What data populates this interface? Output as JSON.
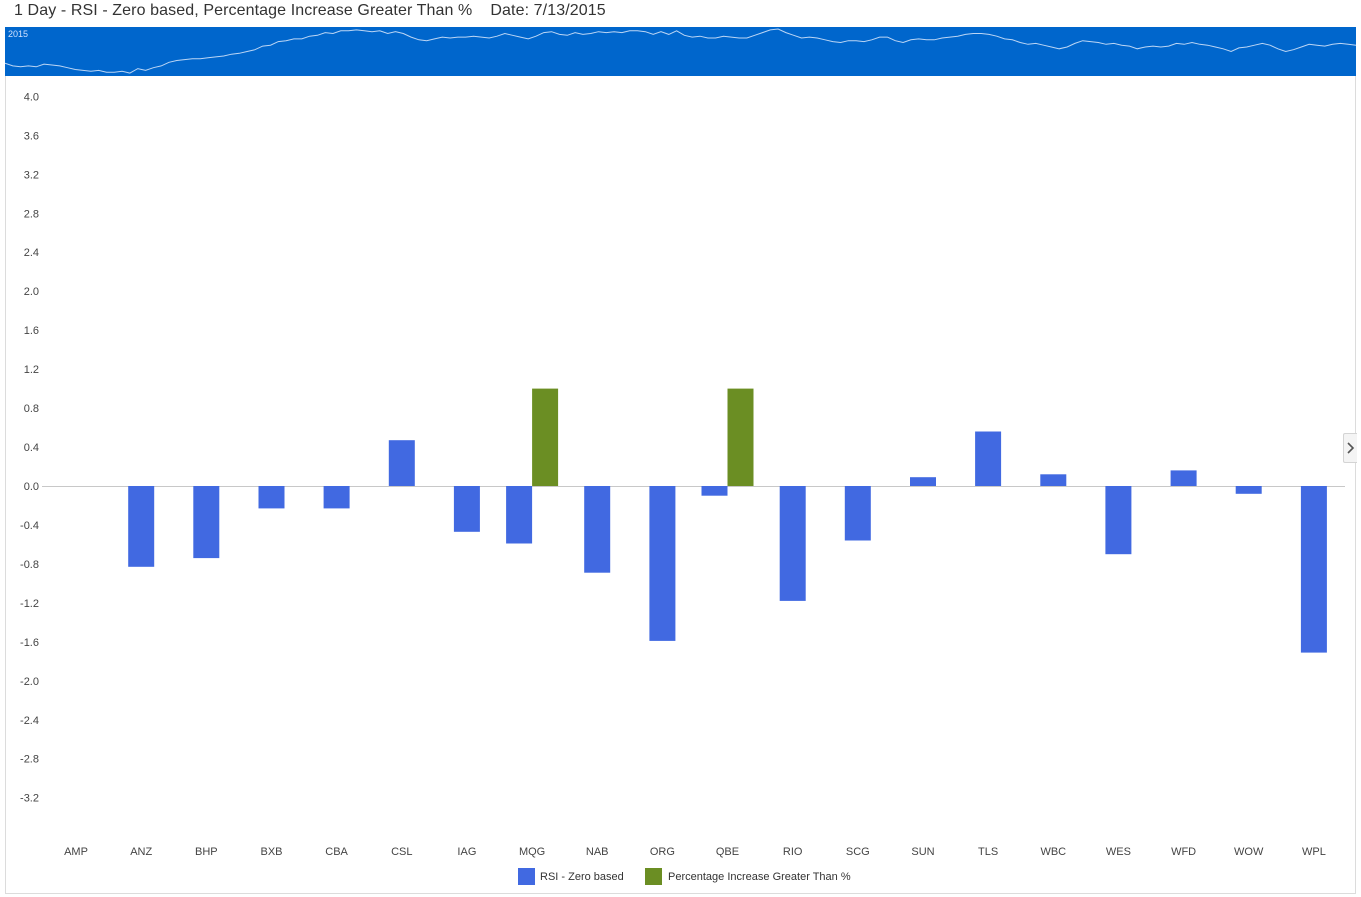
{
  "header": {
    "title": "1 Day - RSI - Zero based, Percentage Increase Greater Than %",
    "date": "Date: 7/13/2015"
  },
  "navigator": {
    "year_label": "2015",
    "band_color": "#0066cc",
    "line_color": "#bcd6f5"
  },
  "chart_data": {
    "type": "bar",
    "categories": [
      "AMP",
      "ANZ",
      "BHP",
      "BXB",
      "CBA",
      "CSL",
      "IAG",
      "MQG",
      "NAB",
      "ORG",
      "QBE",
      "RIO",
      "SCG",
      "SUN",
      "TLS",
      "WBC",
      "WES",
      "WFD",
      "WOW",
      "WPL"
    ],
    "series": [
      {
        "name": "RSI - Zero based",
        "color": "#4169e1",
        "values": [
          0,
          -0.83,
          -0.74,
          -0.23,
          -0.23,
          0.47,
          -0.47,
          -0.59,
          -0.89,
          -1.59,
          -0.1,
          -1.18,
          -0.56,
          0.09,
          0.56,
          0.12,
          -0.7,
          0.16,
          -0.08,
          -1.71
        ]
      },
      {
        "name": "Percentage Increase Greater Than %",
        "color": "#6b8e23",
        "values": [
          0,
          0,
          0,
          0,
          0,
          0,
          0,
          1.0,
          0,
          0,
          1.0,
          0,
          0,
          0,
          0,
          0,
          0,
          0,
          0,
          0
        ]
      }
    ],
    "y_ticks": [
      "4.0",
      "3.6",
      "3.2",
      "2.8",
      "2.4",
      "2.0",
      "1.6",
      "1.2",
      "0.8",
      "0.4",
      "0.0",
      "-0.4",
      "-0.8",
      "-1.2",
      "-1.6",
      "-2.0",
      "-2.4",
      "-2.8",
      "-3.2"
    ],
    "ylim": [
      -3.5,
      4.0
    ],
    "xlabel": "",
    "ylabel": "",
    "legend_position": "bottom-center",
    "grid": false
  }
}
